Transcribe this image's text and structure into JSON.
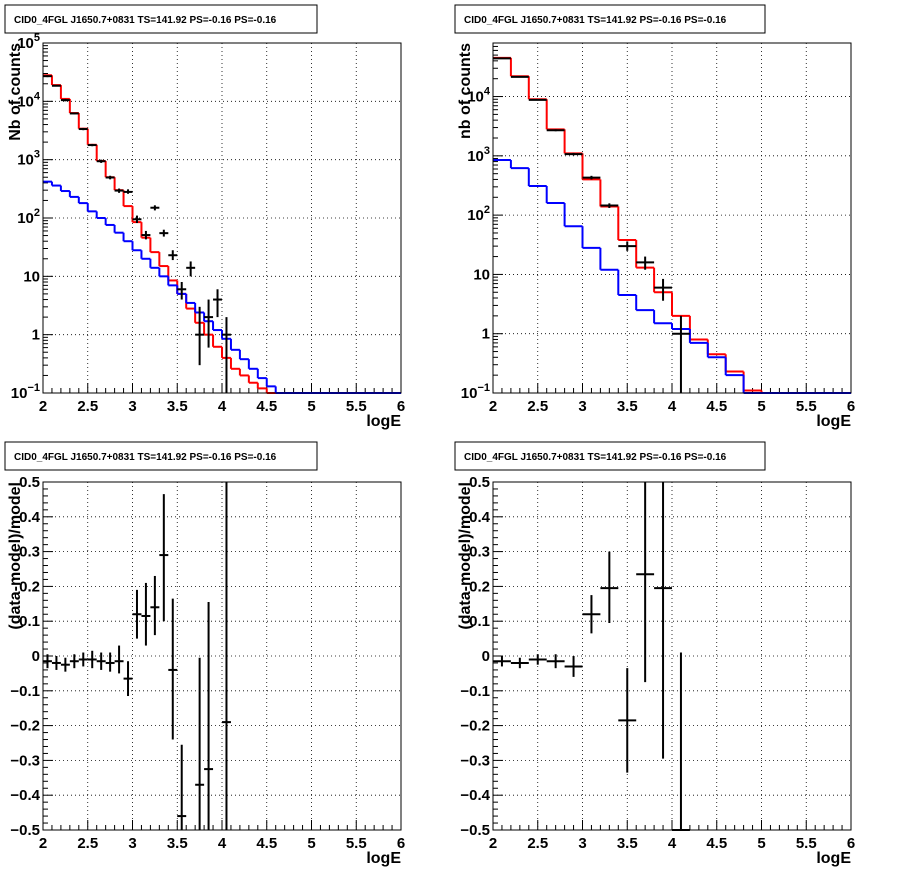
{
  "chart_data": [
    {
      "type": "histogram",
      "title": "CID0_4FGL J1650.7+0831 TS=141.92 PS=-0.16 PS=-0.16",
      "xlabel": "logE",
      "ylabel": "Nb of counts",
      "xlim": [
        2,
        6
      ],
      "ylim": [
        0.1,
        100000
      ],
      "ylog": true,
      "grid": true,
      "xticks": [
        "2",
        "2.5",
        "3",
        "3.5",
        "4",
        "4.5",
        "5",
        "5.5",
        "6"
      ],
      "yticks": [
        {
          "v": 0.1,
          "base": "10",
          "exp": "−1"
        },
        {
          "v": 1,
          "label": "1"
        },
        {
          "v": 10,
          "label": "10"
        },
        {
          "v": 100,
          "base": "10",
          "exp": "2"
        },
        {
          "v": 1000,
          "base": "10",
          "exp": "3"
        },
        {
          "v": 10000,
          "base": "10",
          "exp": "4"
        },
        {
          "v": 100000,
          "base": "10",
          "exp": "5"
        }
      ],
      "bin_edges": [
        2.0,
        2.1,
        2.2,
        2.3,
        2.4,
        2.5,
        2.6,
        2.7,
        2.8,
        2.9,
        3.0,
        3.1,
        3.2,
        3.3,
        3.4,
        3.5,
        3.6,
        3.7,
        3.8,
        3.9,
        4.0,
        4.1,
        4.2,
        4.3,
        4.4,
        4.5,
        4.6,
        4.7,
        4.8,
        4.9,
        5.0,
        5.1,
        5.2,
        5.3,
        5.4,
        5.5,
        5.6,
        5.7,
        5.8,
        5.9,
        6.0
      ],
      "series": [
        {
          "color": "#ff0000",
          "kind": "step",
          "values": [
            28000,
            19000,
            11000,
            6300,
            3400,
            1800,
            950,
            500,
            300,
            160,
            85,
            46,
            26,
            15,
            8.5,
            5,
            2.8,
            1.6,
            1.0,
            0.62,
            0.4,
            0.26,
            0.2,
            0.15,
            0.12,
            0.1,
            0.1,
            0.1,
            0.1,
            0.1,
            0.1,
            0.1,
            0.1,
            0.1,
            0.1,
            0.1,
            0.1,
            0.1,
            0.1,
            0.1
          ]
        },
        {
          "color": "#0000ff",
          "kind": "step",
          "values": [
            420,
            360,
            290,
            230,
            180,
            130,
            100,
            76,
            56,
            40,
            28,
            20,
            14,
            10,
            7,
            5,
            3.5,
            2.4,
            1.7,
            1.2,
            0.85,
            0.55,
            0.38,
            0.26,
            0.18,
            0.13,
            0.1,
            0.1,
            0.1,
            0.1,
            0.1,
            0.1,
            0.1,
            0.1,
            0.1,
            0.1,
            0.1,
            0.1,
            0.1,
            0.1
          ]
        },
        {
          "color": "#000000",
          "kind": "points",
          "points": [
            {
              "x": 2.05,
              "y": 27000,
              "lo": 26000,
              "hi": 28000
            },
            {
              "x": 2.15,
              "y": 18500,
              "lo": 18000,
              "hi": 19000
            },
            {
              "x": 2.25,
              "y": 10500,
              "lo": 10000,
              "hi": 11000
            },
            {
              "x": 2.35,
              "y": 6200,
              "lo": 6000,
              "hi": 6400
            },
            {
              "x": 2.45,
              "y": 3350,
              "lo": 3200,
              "hi": 3500
            },
            {
              "x": 2.55,
              "y": 1780,
              "lo": 1700,
              "hi": 1860
            },
            {
              "x": 2.65,
              "y": 940,
              "lo": 880,
              "hi": 1000
            },
            {
              "x": 2.75,
              "y": 495,
              "lo": 460,
              "hi": 530
            },
            {
              "x": 2.85,
              "y": 295,
              "lo": 270,
              "hi": 320
            },
            {
              "x": 2.95,
              "y": 280,
              "lo": 260,
              "hi": 310
            },
            {
              "x": 3.05,
              "y": 95,
              "lo": 82,
              "hi": 110
            },
            {
              "x": 3.15,
              "y": 51,
              "lo": 43,
              "hi": 60
            },
            {
              "x": 3.25,
              "y": 150,
              "lo": 135,
              "hi": 165
            },
            {
              "x": 3.35,
              "y": 55,
              "lo": 48,
              "hi": 63
            },
            {
              "x": 3.45,
              "y": 23,
              "lo": 19,
              "hi": 28
            },
            {
              "x": 3.55,
              "y": 6,
              "lo": 4,
              "hi": 8
            },
            {
              "x": 3.65,
              "y": 14,
              "lo": 10,
              "hi": 18
            },
            {
              "x": 3.75,
              "y": 1,
              "lo": 0.3,
              "hi": 3
            },
            {
              "x": 3.85,
              "y": 2,
              "lo": 0.6,
              "hi": 4
            },
            {
              "x": 3.95,
              "y": 4,
              "lo": 2,
              "hi": 6
            },
            {
              "x": 4.05,
              "y": 1,
              "lo": 0.1,
              "hi": 2
            }
          ]
        }
      ]
    },
    {
      "type": "histogram",
      "title": "CID0_4FGL J1650.7+0831 TS=141.92 PS=-0.16 PS=-0.16",
      "xlabel": "logE",
      "ylabel": "nb of counts",
      "xlim": [
        2,
        6
      ],
      "ylim": [
        0.1,
        80000
      ],
      "ylog": true,
      "grid": true,
      "xticks": [
        "2",
        "2.5",
        "3",
        "3.5",
        "4",
        "4.5",
        "5",
        "5.5",
        "6"
      ],
      "yticks": [
        {
          "v": 0.1,
          "base": "10",
          "exp": "−1"
        },
        {
          "v": 1,
          "label": "1"
        },
        {
          "v": 10,
          "label": "10"
        },
        {
          "v": 100,
          "base": "10",
          "exp": "2"
        },
        {
          "v": 1000,
          "base": "10",
          "exp": "3"
        },
        {
          "v": 10000,
          "base": "10",
          "exp": "4"
        }
      ],
      "bin_edges": [
        2.0,
        2.2,
        2.4,
        2.6,
        2.8,
        3.0,
        3.2,
        3.4,
        3.6,
        3.8,
        4.0,
        4.2,
        4.4,
        4.6,
        4.8,
        5.0,
        5.2,
        5.4,
        5.6,
        5.8,
        6.0
      ],
      "series": [
        {
          "color": "#ff0000",
          "kind": "step",
          "values": [
            45000,
            22000,
            9000,
            2800,
            1100,
            400,
            140,
            38,
            13,
            5,
            2,
            0.8,
            0.45,
            0.23,
            0.11,
            0.1,
            0.1,
            0.1,
            0.1,
            0.1
          ]
        },
        {
          "color": "#0000ff",
          "kind": "step",
          "values": [
            850,
            620,
            310,
            160,
            65,
            28,
            12,
            4.5,
            2.5,
            1.5,
            1.2,
            0.7,
            0.4,
            0.2,
            0.1,
            0.1,
            0.1,
            0.1,
            0.1,
            0.1
          ]
        },
        {
          "color": "#000000",
          "kind": "points",
          "points": [
            {
              "x": 2.1,
              "y": 44000,
              "lo": 43500,
              "hi": 44500
            },
            {
              "x": 2.3,
              "y": 21500,
              "lo": 21100,
              "hi": 21900
            },
            {
              "x": 2.5,
              "y": 8800,
              "lo": 8600,
              "hi": 9000
            },
            {
              "x": 2.7,
              "y": 2700,
              "lo": 2600,
              "hi": 2800
            },
            {
              "x": 2.9,
              "y": 1070,
              "lo": 1020,
              "hi": 1120
            },
            {
              "x": 3.1,
              "y": 430,
              "lo": 400,
              "hi": 460
            },
            {
              "x": 3.3,
              "y": 145,
              "lo": 132,
              "hi": 158
            },
            {
              "x": 3.5,
              "y": 30,
              "lo": 25,
              "hi": 36
            },
            {
              "x": 3.7,
              "y": 16,
              "lo": 12,
              "hi": 20
            },
            {
              "x": 3.9,
              "y": 6,
              "lo": 3.6,
              "hi": 8.4
            },
            {
              "x": 4.1,
              "y": 1,
              "lo": 0.1,
              "hi": 2
            }
          ]
        }
      ]
    },
    {
      "type": "scatter",
      "title": "CID0_4FGL J1650.7+0831 TS=141.92 PS=-0.16 PS=-0.16",
      "xlabel": "logE",
      "ylabel": "(data-model)/model",
      "xlim": [
        2,
        6
      ],
      "ylim": [
        -0.5,
        0.5
      ],
      "ylog": false,
      "grid": true,
      "xticks": [
        "2",
        "2.5",
        "3",
        "3.5",
        "4",
        "4.5",
        "5",
        "5.5",
        "6"
      ],
      "yticks": [
        {
          "v": -0.5,
          "label": "−0.5"
        },
        {
          "v": -0.4,
          "label": "−0.4"
        },
        {
          "v": -0.3,
          "label": "−0.3"
        },
        {
          "v": -0.2,
          "label": "−0.2"
        },
        {
          "v": -0.1,
          "label": "−0.1"
        },
        {
          "v": 0,
          "label": "0"
        },
        {
          "v": 0.1,
          "label": "0.1"
        },
        {
          "v": 0.2,
          "label": "0.2"
        },
        {
          "v": 0.3,
          "label": "0.3"
        },
        {
          "v": 0.4,
          "label": "0.4"
        },
        {
          "v": 0.5,
          "label": "0.5"
        }
      ],
      "xerr": 0.05,
      "series": [
        {
          "color": "#000000",
          "kind": "points",
          "points": [
            {
              "x": 2.05,
              "y": -0.015,
              "lo": -0.035,
              "hi": 0.005
            },
            {
              "x": 2.15,
              "y": -0.02,
              "lo": -0.04,
              "hi": 0.0
            },
            {
              "x": 2.25,
              "y": -0.025,
              "lo": -0.045,
              "hi": -0.005
            },
            {
              "x": 2.35,
              "y": -0.015,
              "lo": -0.035,
              "hi": 0.005
            },
            {
              "x": 2.45,
              "y": -0.01,
              "lo": -0.03,
              "hi": 0.01
            },
            {
              "x": 2.55,
              "y": -0.01,
              "lo": -0.035,
              "hi": 0.015
            },
            {
              "x": 2.65,
              "y": -0.015,
              "lo": -0.04,
              "hi": 0.01
            },
            {
              "x": 2.75,
              "y": -0.02,
              "lo": -0.045,
              "hi": 0.01
            },
            {
              "x": 2.85,
              "y": -0.015,
              "lo": -0.05,
              "hi": 0.03
            },
            {
              "x": 2.95,
              "y": -0.065,
              "lo": -0.115,
              "hi": -0.015
            },
            {
              "x": 3.05,
              "y": 0.12,
              "lo": 0.05,
              "hi": 0.19
            },
            {
              "x": 3.15,
              "y": 0.115,
              "lo": 0.03,
              "hi": 0.21
            },
            {
              "x": 3.25,
              "y": 0.14,
              "lo": 0.06,
              "hi": 0.23
            },
            {
              "x": 3.35,
              "y": 0.29,
              "lo": 0.1,
              "hi": 0.465
            },
            {
              "x": 3.45,
              "y": -0.04,
              "lo": -0.24,
              "hi": 0.165
            },
            {
              "x": 3.55,
              "y": -0.46,
              "lo": -0.5,
              "hi": -0.255
            },
            {
              "x": 3.75,
              "y": -0.37,
              "lo": -0.5,
              "hi": -0.005
            },
            {
              "x": 3.85,
              "y": -0.325,
              "lo": -0.5,
              "hi": 0.155
            },
            {
              "x": 4.05,
              "y": -0.19,
              "lo": -0.5,
              "hi": 0.5
            }
          ]
        }
      ]
    },
    {
      "type": "scatter",
      "title": "CID0_4FGL J1650.7+0831 TS=141.92 PS=-0.16 PS=-0.16",
      "xlabel": "logE",
      "ylabel": "(data-model)/model",
      "xlim": [
        2,
        6
      ],
      "ylim": [
        -0.5,
        0.5
      ],
      "ylog": false,
      "grid": true,
      "xticks": [
        "2",
        "2.5",
        "3",
        "3.5",
        "4",
        "4.5",
        "5",
        "5.5",
        "6"
      ],
      "yticks": [
        {
          "v": -0.5,
          "label": "−0.5"
        },
        {
          "v": -0.4,
          "label": "−0.4"
        },
        {
          "v": -0.3,
          "label": "−0.3"
        },
        {
          "v": -0.2,
          "label": "−0.2"
        },
        {
          "v": -0.1,
          "label": "−0.1"
        },
        {
          "v": 0,
          "label": "0"
        },
        {
          "v": 0.1,
          "label": "0.1"
        },
        {
          "v": 0.2,
          "label": "0.2"
        },
        {
          "v": 0.3,
          "label": "0.3"
        },
        {
          "v": 0.4,
          "label": "0.4"
        },
        {
          "v": 0.5,
          "label": "0.5"
        }
      ],
      "xerr": 0.1,
      "series": [
        {
          "color": "#000000",
          "kind": "points",
          "points": [
            {
              "x": 2.1,
              "y": -0.015,
              "lo": -0.03,
              "hi": 0.0
            },
            {
              "x": 2.3,
              "y": -0.02,
              "lo": -0.035,
              "hi": -0.005
            },
            {
              "x": 2.5,
              "y": -0.01,
              "lo": -0.025,
              "hi": 0.005
            },
            {
              "x": 2.7,
              "y": -0.015,
              "lo": -0.035,
              "hi": 0.005
            },
            {
              "x": 2.9,
              "y": -0.03,
              "lo": -0.06,
              "hi": 0.0
            },
            {
              "x": 3.1,
              "y": 0.12,
              "lo": 0.065,
              "hi": 0.175
            },
            {
              "x": 3.3,
              "y": 0.195,
              "lo": 0.095,
              "hi": 0.3
            },
            {
              "x": 3.5,
              "y": -0.185,
              "lo": -0.335,
              "hi": -0.035
            },
            {
              "x": 3.7,
              "y": 0.235,
              "lo": -0.075,
              "hi": 0.5
            },
            {
              "x": 3.9,
              "y": 0.195,
              "lo": -0.295,
              "hi": 0.5
            },
            {
              "x": 4.1,
              "y": -0.5,
              "lo": -0.5,
              "hi": 0.01
            }
          ]
        }
      ]
    }
  ]
}
